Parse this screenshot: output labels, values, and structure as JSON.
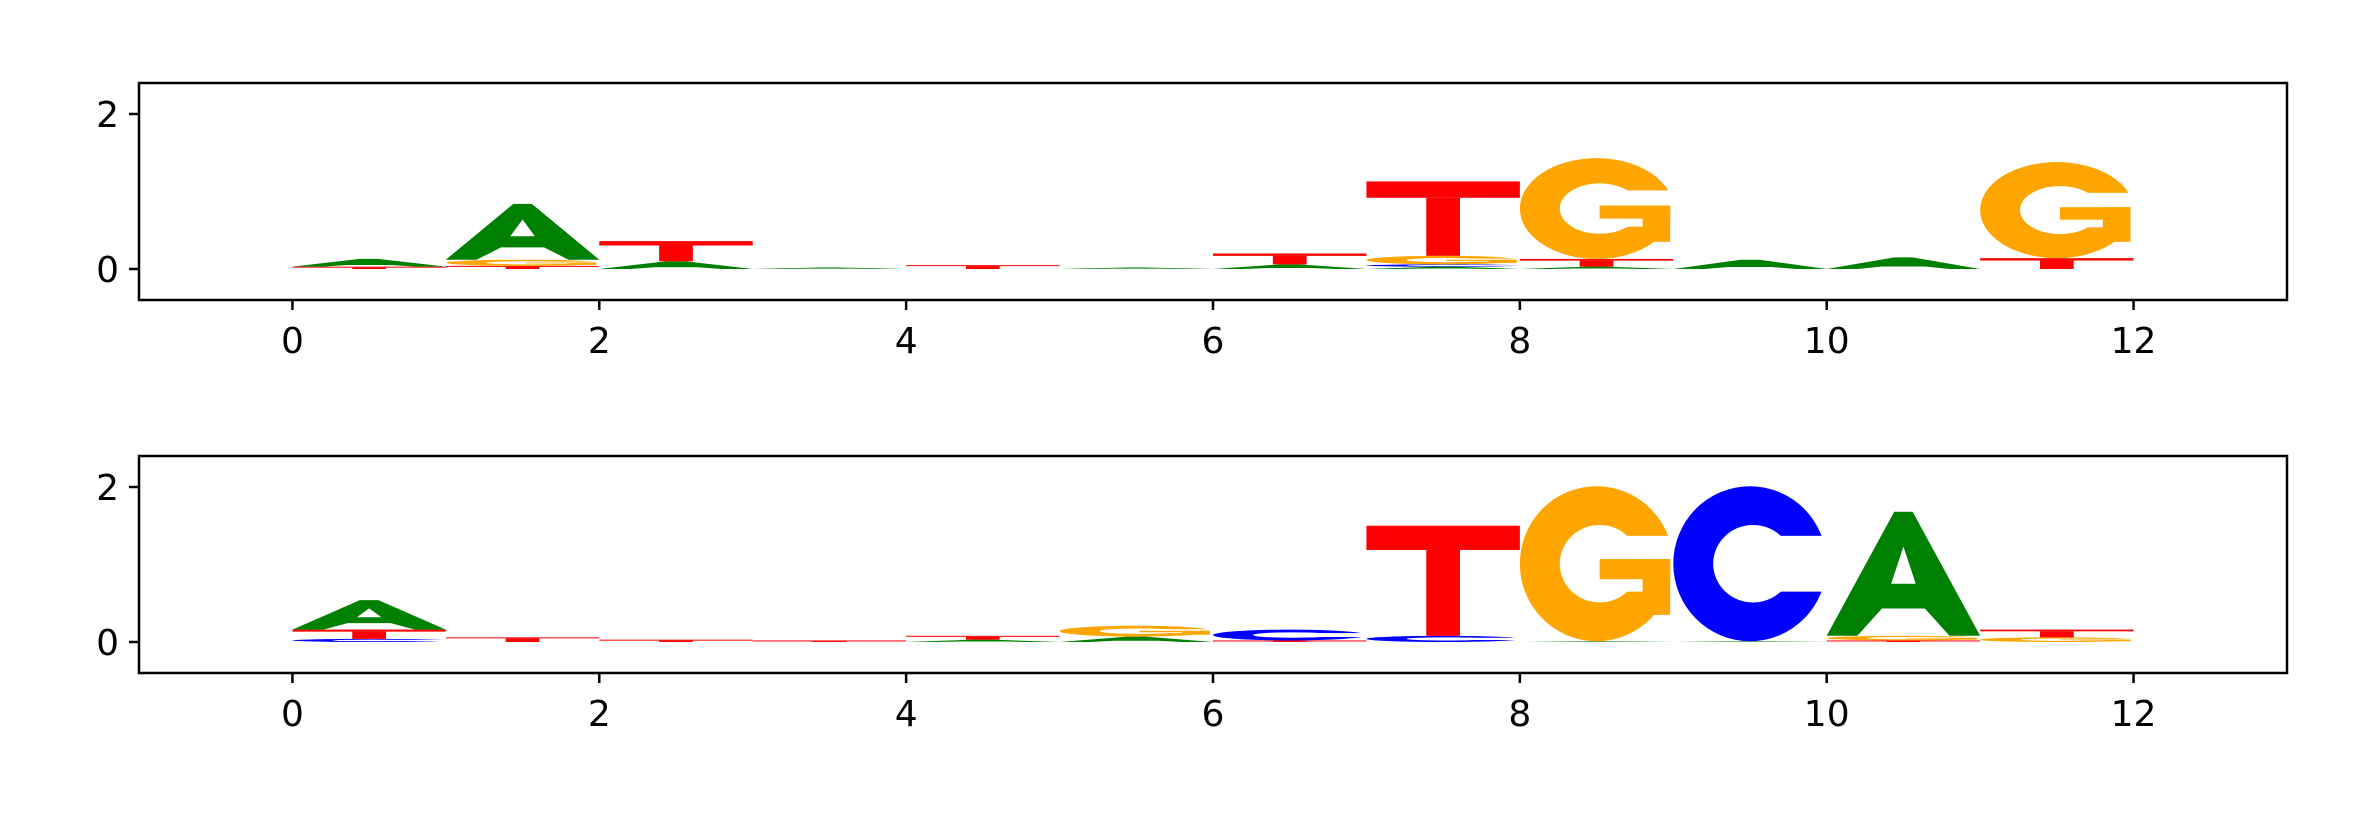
{
  "colors": {
    "A": "#008000",
    "C": "#0000ff",
    "G": "#ffa500",
    "T": "#ff0000",
    "axis": "#000000"
  },
  "chart_data": [
    {
      "type": "sequence-logo",
      "xlim": [
        -1,
        13
      ],
      "ylim": [
        -0.4,
        2.4
      ],
      "xticks": [
        0,
        2,
        4,
        6,
        8,
        10,
        12
      ],
      "yticks": [
        0,
        2
      ],
      "positions": [
        {
          "x": 0,
          "stack": [
            {
              "base": "T",
              "h": 0.03
            },
            {
              "base": "A",
              "h": 0.1
            }
          ]
        },
        {
          "x": 1,
          "stack": [
            {
              "base": "T",
              "h": 0.04
            },
            {
              "base": "G",
              "h": 0.08
            },
            {
              "base": "A",
              "h": 0.72
            }
          ]
        },
        {
          "x": 2,
          "stack": [
            {
              "base": "A",
              "h": 0.1
            },
            {
              "base": "T",
              "h": 0.26
            }
          ]
        },
        {
          "x": 3,
          "stack": [
            {
              "base": "A",
              "h": 0.02
            }
          ]
        },
        {
          "x": 4,
          "stack": [
            {
              "base": "T",
              "h": 0.05
            }
          ]
        },
        {
          "x": 5,
          "stack": [
            {
              "base": "A",
              "h": 0.02
            }
          ]
        },
        {
          "x": 6,
          "stack": [
            {
              "base": "A",
              "h": 0.06
            },
            {
              "base": "T",
              "h": 0.14
            }
          ]
        },
        {
          "x": 7,
          "stack": [
            {
              "base": "A",
              "h": 0.03
            },
            {
              "base": "C",
              "h": 0.03
            },
            {
              "base": "G",
              "h": 0.11
            },
            {
              "base": "T",
              "h": 0.96
            }
          ]
        },
        {
          "x": 8,
          "stack": [
            {
              "base": "A",
              "h": 0.03
            },
            {
              "base": "T",
              "h": 0.1
            },
            {
              "base": "G",
              "h": 1.3
            }
          ]
        },
        {
          "x": 9,
          "stack": [
            {
              "base": "A",
              "h": 0.12
            }
          ]
        },
        {
          "x": 10,
          "stack": [
            {
              "base": "A",
              "h": 0.15
            }
          ]
        },
        {
          "x": 11,
          "stack": [
            {
              "base": "T",
              "h": 0.14
            },
            {
              "base": "G",
              "h": 1.24
            }
          ]
        }
      ]
    },
    {
      "type": "sequence-logo",
      "xlim": [
        -1,
        13
      ],
      "ylim": [
        -0.4,
        2.4
      ],
      "xticks": [
        0,
        2,
        4,
        6,
        8,
        10,
        12
      ],
      "yticks": [
        0,
        2
      ],
      "positions": [
        {
          "x": 0,
          "stack": [
            {
              "base": "C",
              "h": 0.04
            },
            {
              "base": "T",
              "h": 0.12
            },
            {
              "base": "A",
              "h": 0.38
            }
          ]
        },
        {
          "x": 1,
          "stack": [
            {
              "base": "T",
              "h": 0.06
            }
          ]
        },
        {
          "x": 2,
          "stack": [
            {
              "base": "T",
              "h": 0.03
            }
          ]
        },
        {
          "x": 3,
          "stack": [
            {
              "base": "T",
              "h": 0.02
            }
          ]
        },
        {
          "x": 4,
          "stack": [
            {
              "base": "A",
              "h": 0.03
            },
            {
              "base": "T",
              "h": 0.05
            }
          ]
        },
        {
          "x": 5,
          "stack": [
            {
              "base": "A",
              "h": 0.07
            },
            {
              "base": "G",
              "h": 0.14
            }
          ]
        },
        {
          "x": 6,
          "stack": [
            {
              "base": "T",
              "h": 0.02
            },
            {
              "base": "C",
              "h": 0.14
            }
          ]
        },
        {
          "x": 7,
          "stack": [
            {
              "base": "C",
              "h": 0.08
            },
            {
              "base": "T",
              "h": 1.42
            }
          ]
        },
        {
          "x": 8,
          "stack": [
            {
              "base": "A",
              "h": 0.01
            },
            {
              "base": "G",
              "h": 2.0
            }
          ]
        },
        {
          "x": 9,
          "stack": [
            {
              "base": "A",
              "h": 0.01
            },
            {
              "base": "C",
              "h": 2.0
            }
          ]
        },
        {
          "x": 10,
          "stack": [
            {
              "base": "T",
              "h": 0.02
            },
            {
              "base": "G",
              "h": 0.06
            },
            {
              "base": "A",
              "h": 1.6
            }
          ]
        },
        {
          "x": 11,
          "stack": [
            {
              "base": "G",
              "h": 0.06
            },
            {
              "base": "T",
              "h": 0.1
            }
          ]
        }
      ]
    }
  ]
}
